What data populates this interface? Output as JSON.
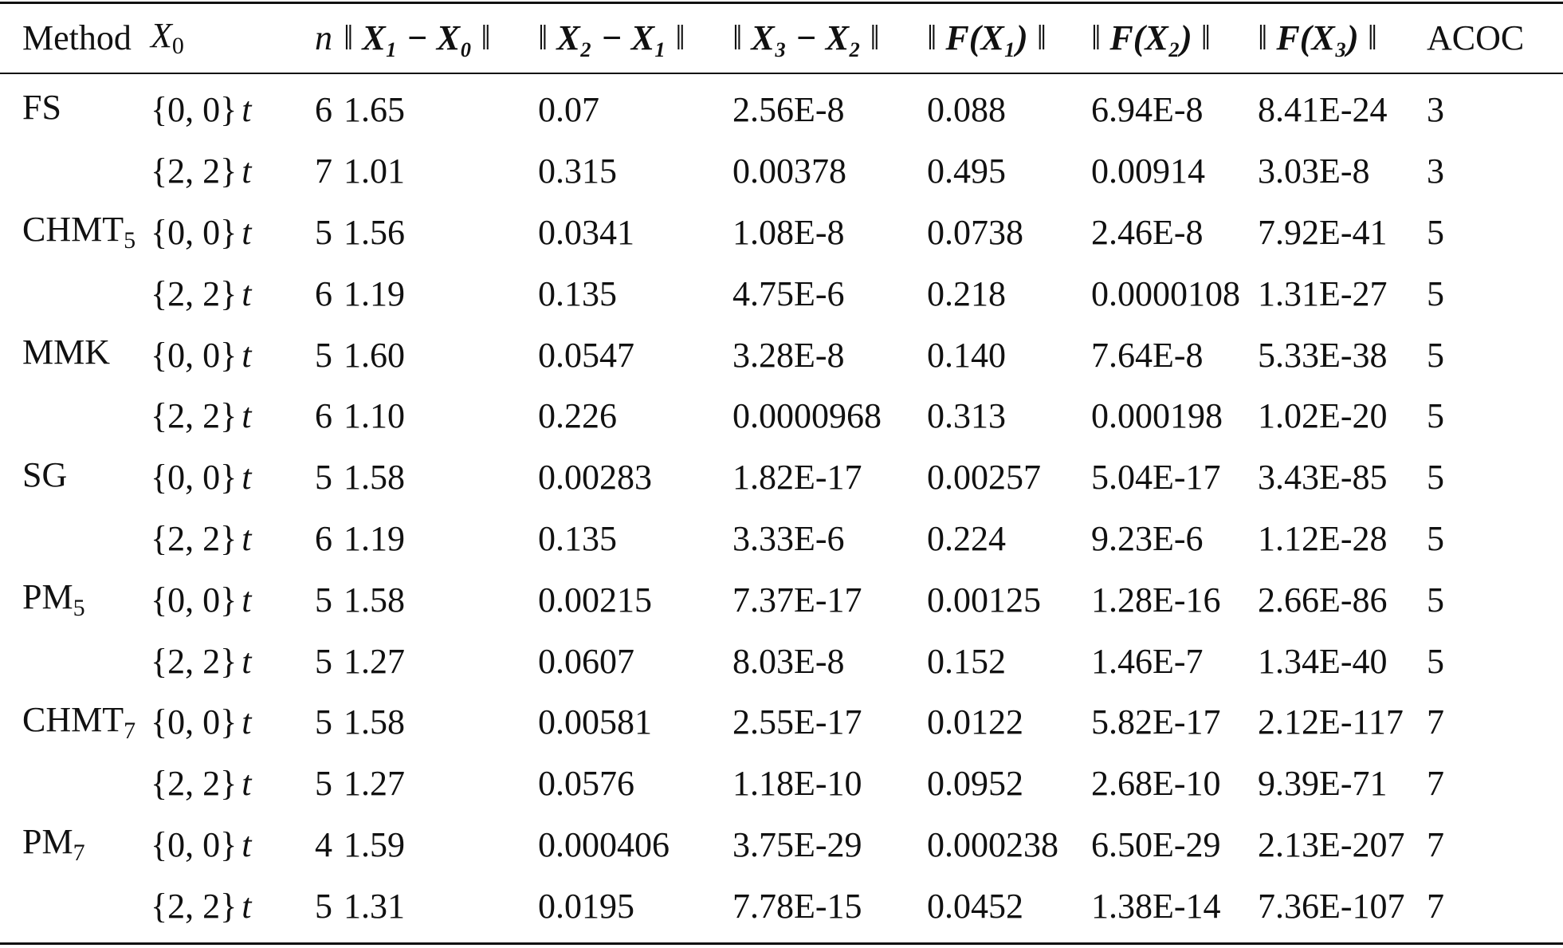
{
  "table": {
    "headers": {
      "method": "Method",
      "x0": "X",
      "x0_sub": "0",
      "n": "n",
      "norm_open": "‖",
      "norm_close": "‖",
      "d1": "X₁ − X₀",
      "d2": "X₂ − X₁",
      "d3": "X₃ − X₂",
      "f1": "F(X₁)",
      "f2": "F(X₂)",
      "f3": "F(X₃)",
      "acoc": "ACOC"
    },
    "rows": [
      {
        "method": "FS",
        "method_sub": "",
        "x0": "{0, 0}",
        "t": "t",
        "n": "6",
        "d1": "1.65",
        "d2": "0.07",
        "d3": "2.56E-8",
        "f1": "0.088",
        "f2": "6.94E-8",
        "f3": "8.41E-24",
        "acoc": "3"
      },
      {
        "method": "",
        "method_sub": "",
        "x0": "{2, 2}",
        "t": "t",
        "n": "7",
        "d1": "1.01",
        "d2": "0.315",
        "d3": "0.00378",
        "f1": "0.495",
        "f2": "0.00914",
        "f3": "3.03E-8",
        "acoc": "3"
      },
      {
        "method": "CHMT",
        "method_sub": "5",
        "x0": "{0, 0}",
        "t": "t",
        "n": "5",
        "d1": "1.56",
        "d2": "0.0341",
        "d3": "1.08E-8",
        "f1": "0.0738",
        "f2": "2.46E-8",
        "f3": "7.92E-41",
        "acoc": "5"
      },
      {
        "method": "",
        "method_sub": "",
        "x0": "{2, 2}",
        "t": "t",
        "n": "6",
        "d1": "1.19",
        "d2": "0.135",
        "d3": "4.75E-6",
        "f1": "0.218",
        "f2": "0.0000108",
        "f3": "1.31E-27",
        "acoc": "5"
      },
      {
        "method": "MMK",
        "method_sub": "",
        "x0": "{0, 0}",
        "t": "t",
        "n": "5",
        "d1": "1.60",
        "d2": "0.0547",
        "d3": "3.28E-8",
        "f1": "0.140",
        "f2": "7.64E-8",
        "f3": "5.33E-38",
        "acoc": "5"
      },
      {
        "method": "",
        "method_sub": "",
        "x0": "{2, 2}",
        "t": "t",
        "n": "6",
        "d1": "1.10",
        "d2": "0.226",
        "d3": "0.0000968",
        "f1": "0.313",
        "f2": "0.000198",
        "f3": "1.02E-20",
        "acoc": "5"
      },
      {
        "method": "SG",
        "method_sub": "",
        "x0": "{0, 0}",
        "t": "t",
        "n": "5",
        "d1": "1.58",
        "d2": "0.00283",
        "d3": "1.82E-17",
        "f1": "0.00257",
        "f2": "5.04E-17",
        "f3": "3.43E-85",
        "acoc": "5"
      },
      {
        "method": "",
        "method_sub": "",
        "x0": "{2, 2}",
        "t": "t",
        "n": "6",
        "d1": "1.19",
        "d2": "0.135",
        "d3": "3.33E-6",
        "f1": "0.224",
        "f2": "9.23E-6",
        "f3": "1.12E-28",
        "acoc": "5"
      },
      {
        "method": "PM",
        "method_sub": "5",
        "x0": "{0, 0}",
        "t": "t",
        "n": "5",
        "d1": "1.58",
        "d2": "0.00215",
        "d3": "7.37E-17",
        "f1": "0.00125",
        "f2": "1.28E-16",
        "f3": "2.66E-86",
        "acoc": "5"
      },
      {
        "method": "",
        "method_sub": "",
        "x0": "{2, 2}",
        "t": "t",
        "n": "5",
        "d1": "1.27",
        "d2": "0.0607",
        "d3": "8.03E-8",
        "f1": "0.152",
        "f2": "1.46E-7",
        "f3": "1.34E-40",
        "acoc": "5"
      },
      {
        "method": "CHMT",
        "method_sub": "7",
        "x0": "{0, 0}",
        "t": "t",
        "n": "5",
        "d1": "1.58",
        "d2": "0.00581",
        "d3": "2.55E-17",
        "f1": "0.0122",
        "f2": "5.82E-17",
        "f3": "2.12E-117",
        "acoc": "7"
      },
      {
        "method": "",
        "method_sub": "",
        "x0": "{2, 2}",
        "t": "t",
        "n": "5",
        "d1": "1.27",
        "d2": "0.0576",
        "d3": "1.18E-10",
        "f1": "0.0952",
        "f2": "2.68E-10",
        "f3": "9.39E-71",
        "acoc": "7"
      },
      {
        "method": "PM",
        "method_sub": "7",
        "x0": "{0, 0}",
        "t": "t",
        "n": "4",
        "d1": "1.59",
        "d2": "0.000406",
        "d3": "3.75E-29",
        "f1": "0.000238",
        "f2": "6.50E-29",
        "f3": "2.13E-207",
        "acoc": "7"
      },
      {
        "method": "",
        "method_sub": "",
        "x0": "{2, 2}",
        "t": "t",
        "n": "5",
        "d1": "1.31",
        "d2": "0.0195",
        "d3": "7.78E-15",
        "f1": "0.0452",
        "f2": "1.38E-14",
        "f3": "7.36E-107",
        "acoc": "7"
      }
    ]
  }
}
